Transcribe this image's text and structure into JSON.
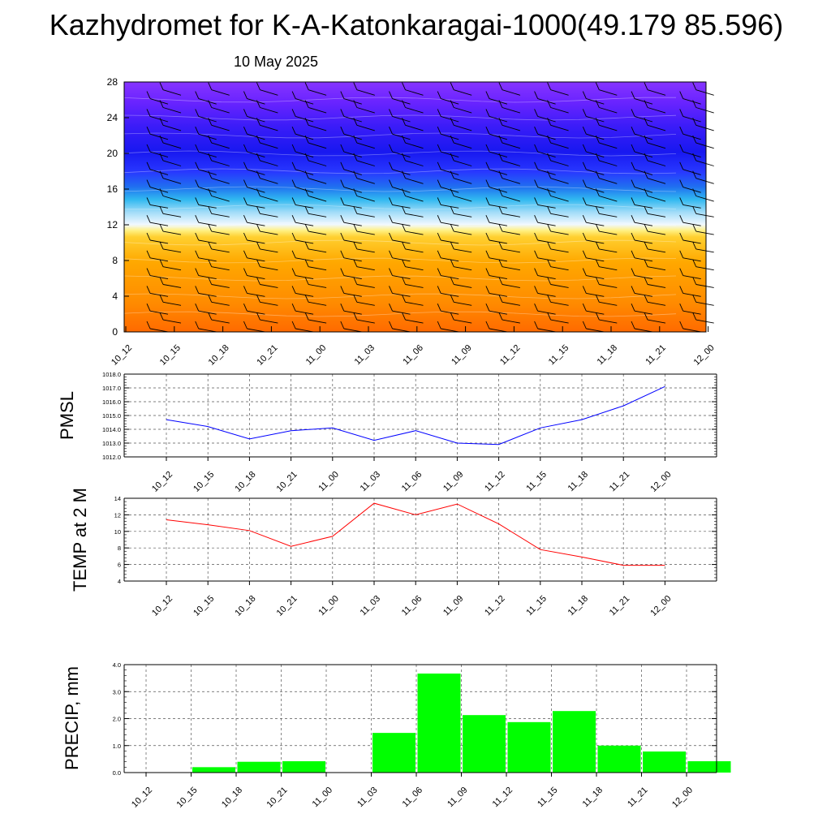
{
  "title": "Kazhydromet for K-A-Katonkaragai-1000(49.179 85.596)",
  "date": "10 May 2025",
  "time_labels": [
    "10_12",
    "10_15",
    "10_18",
    "10_21",
    "11_00",
    "11_03",
    "11_06",
    "11_09",
    "11_12",
    "11_15",
    "11_18",
    "11_21",
    "12_00"
  ],
  "chart_data": [
    {
      "type": "heatmap",
      "yticks": [
        "0",
        "4",
        "8",
        "12",
        "16",
        "20",
        "24",
        "28"
      ],
      "ylim": [
        0,
        28
      ],
      "colors": {
        "bottom": "#ff6a00",
        "mid_low": "#ffc000",
        "yellow": "#ffee60",
        "white": "#f0f8ff",
        "cyan": "#30c8f0",
        "blue": "#2020ff",
        "purple": "#8030ff"
      },
      "wind_barbs": "black"
    },
    {
      "type": "line",
      "ylabel": "PMSL",
      "ylim": [
        1012.0,
        1018.0
      ],
      "yticks": [
        "1012.0",
        "1013.0",
        "1014.0",
        "1015.0",
        "1016.0",
        "1017.0",
        "1018.0"
      ],
      "values": [
        1014.7,
        1014.2,
        1013.3,
        1013.9,
        1014.1,
        1013.2,
        1013.9,
        1013.0,
        1012.9,
        1014.1,
        1014.7,
        1015.7,
        1017.1
      ],
      "color": "#0000ff",
      "grid": true
    },
    {
      "type": "line",
      "ylabel": "TEMP at 2 M",
      "ylim": [
        4,
        14
      ],
      "yticks": [
        "4",
        "6",
        "8",
        "10",
        "12",
        "14"
      ],
      "values": [
        11.4,
        10.8,
        10.1,
        8.2,
        9.4,
        13.4,
        12.0,
        13.3,
        10.9,
        7.8,
        6.9,
        5.9,
        5.9
      ],
      "color": "#ff0000",
      "grid": true
    },
    {
      "type": "bar",
      "ylabel": "PRECIP, mm",
      "ylim": [
        0.0,
        4.0
      ],
      "yticks": [
        "0.0",
        "1.0",
        "2.0",
        "3.0",
        "4.0"
      ],
      "values": [
        0,
        0.2,
        0.4,
        0.42,
        0,
        1.47,
        3.67,
        2.13,
        1.87,
        2.28,
        1.0,
        0.78,
        0.42
      ],
      "color": "#00ff00",
      "grid": true
    }
  ]
}
